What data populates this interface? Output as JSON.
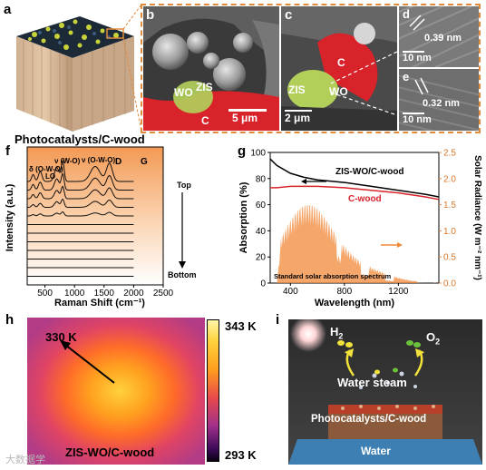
{
  "panels": {
    "a": {
      "letter": "a",
      "caption": "Photocatalysts/C-wood"
    },
    "b": {
      "letter": "b",
      "labels": {
        "zis": "ZIS",
        "wo": "WO",
        "c": "C"
      },
      "scale": "5 μm"
    },
    "c": {
      "letter": "c",
      "labels": {
        "zis": "ZIS",
        "wo": "WO",
        "c": "C"
      },
      "scale": "2 μm"
    },
    "d": {
      "letter": "d",
      "spacing": "0.39 nm",
      "scale": "10 nm"
    },
    "e": {
      "letter": "e",
      "spacing": "0.32 nm",
      "scale": "10 nm"
    },
    "f": {
      "letter": "f",
      "peaks": {
        "wo": "ν (W-O)",
        "owo": "ν (O-W-O)",
        "delta_owo": "δ (O-W-O)",
        "lo": "LO",
        "d": "D",
        "g": "G"
      },
      "top": "Top",
      "bottom": "Bottom"
    },
    "g": {
      "letter": "g",
      "legend_zis": "ZIS-WO/C-wood",
      "legend_cwood": "C-wood",
      "spectrum_label": "Standard solar absorption spectrum"
    },
    "h": {
      "letter": "h",
      "temp_marker": "330 K",
      "caption": "ZIS-WO/C-wood",
      "colorbar_max": "343 K",
      "colorbar_min": "293 K"
    },
    "i": {
      "letter": "i",
      "h2": "H",
      "h2_sub": "2",
      "o2": "O",
      "o2_sub": "2",
      "steam": "Water steam",
      "caption": "Photocatalysts/C-wood",
      "water": "Water"
    }
  },
  "watermark": "大数据学",
  "colors": {
    "orange": "#f0883a",
    "red": "#d8232a",
    "panel_border": "#e08a3c"
  },
  "chart_data": [
    {
      "type": "line",
      "panel": "f",
      "xlabel": "Raman Shift (cm⁻¹)",
      "ylabel": "Intensity (a.u.)",
      "xlim": [
        200,
        2500
      ],
      "xticks": [
        500,
        1000,
        1500,
        2000,
        2500
      ],
      "series_count": 12
    },
    {
      "type": "line",
      "panel": "g",
      "xlabel": "Wavelength (nm)",
      "ylabel": "Absorption (%)",
      "ylabel_right": "Solar Radiance (W m⁻² nm⁻¹)",
      "xlim": [
        250,
        1500
      ],
      "ylim": [
        0,
        100
      ],
      "ylim_right": [
        0,
        2.5
      ],
      "xticks": [
        400,
        800,
        1200
      ],
      "yticks": [
        0,
        20,
        40,
        60,
        80,
        100
      ],
      "yticks_right": [
        0.0,
        0.5,
        1.0,
        1.5,
        2.0,
        2.5
      ],
      "series": [
        {
          "name": "ZIS-WO/C-wood",
          "x": [
            250,
            300,
            400,
            500,
            600,
            800,
            1000,
            1200,
            1400,
            1500
          ],
          "y": [
            95,
            90,
            84,
            81,
            79,
            77,
            74,
            71,
            68,
            66
          ]
        },
        {
          "name": "C-wood",
          "x": [
            250,
            300,
            400,
            600,
            800,
            1000,
            1200,
            1400,
            1500
          ],
          "y": [
            73,
            73,
            74,
            74,
            73,
            71,
            69,
            66,
            64
          ]
        }
      ]
    }
  ]
}
